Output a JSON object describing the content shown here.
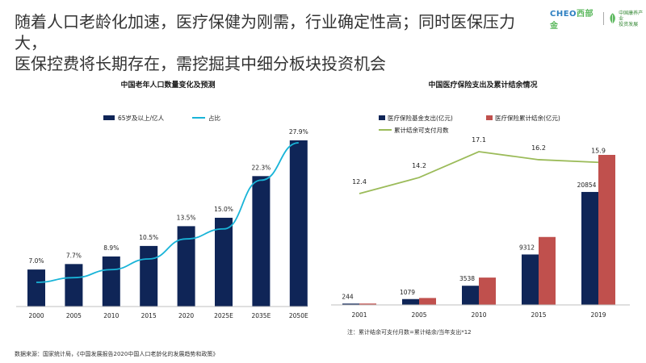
{
  "headline": {
    "line1": "随着人口老龄化加速，医疗保健为刚需，行业确定性高；同时医保压力大，",
    "line2": "医保控费将长期存在，需挖掘其中细分板块投资机会"
  },
  "logo": {
    "brand_a": "CHEO",
    "brand_b": "西部金",
    "sub": "中国康养产业\n投资发展"
  },
  "colors": {
    "navy": "#0f2557",
    "cyan": "#19b4d8",
    "red": "#c0504d",
    "green": "#9bbb59"
  },
  "chart_data": [
    {
      "type": "bar",
      "title": "中国老年人口数量变化及预测",
      "categories": [
        "2000",
        "2005",
        "2010",
        "2015",
        "2020",
        "2025E",
        "2035E",
        "2050E"
      ],
      "series": [
        {
          "name": "65岁及以上/亿人",
          "type": "bar",
          "values": [
            0.88,
            1.01,
            1.19,
            1.44,
            1.91,
            2.11,
            3.1,
            3.95
          ]
        },
        {
          "name": "占比",
          "type": "line",
          "values": [
            7.0,
            7.7,
            8.9,
            10.5,
            13.5,
            15.0,
            22.3,
            27.9
          ],
          "labels": [
            "7.0%",
            "7.7%",
            "8.9%",
            "10.5%",
            "13.5%",
            "15.0%",
            "22.3%",
            "27.9%"
          ]
        }
      ],
      "legend_position": "top"
    },
    {
      "type": "bar",
      "title": "中国医疗保险支出及累计结余情况",
      "categories": [
        "2001",
        "2005",
        "2010",
        "2015",
        "2019"
      ],
      "series": [
        {
          "name": "医疗保险基金支出(亿元)",
          "type": "bar",
          "values": [
            244,
            1079,
            3538,
            9312,
            20854
          ],
          "labels": [
            "244",
            "1079",
            "3538",
            "9312",
            "20854"
          ]
        },
        {
          "name": "医疗保险累计结余(亿元)",
          "type": "bar",
          "values": [
            253,
            1278,
            5047,
            12543,
            27697
          ]
        },
        {
          "name": "累计结余可支付月数",
          "type": "line",
          "values": [
            12.4,
            14.2,
            17.1,
            16.2,
            15.9
          ],
          "labels": [
            "12.4",
            "14.2",
            "17.1",
            "16.2",
            "15.9"
          ]
        }
      ],
      "legend_position": "top",
      "note": "注：累计结余可支付月数=累计结余/当年支出*12"
    }
  ],
  "source": "数据来源：国家统计局，《中国发展报告2020中国人口老龄化的发展趋势和政策》"
}
